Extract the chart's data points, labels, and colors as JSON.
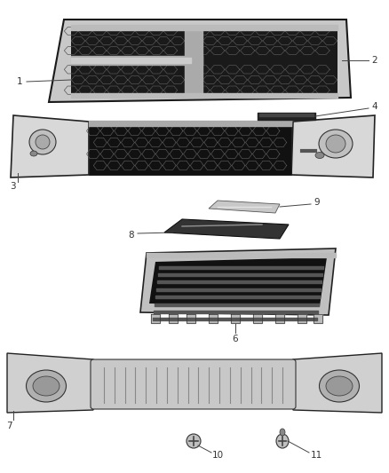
{
  "bg_color": "#ffffff",
  "line_color": "#444444",
  "label_color": "#333333",
  "label_fontsize": 7.5,
  "fig_width": 4.38,
  "fig_height": 5.33,
  "dpi": 100
}
